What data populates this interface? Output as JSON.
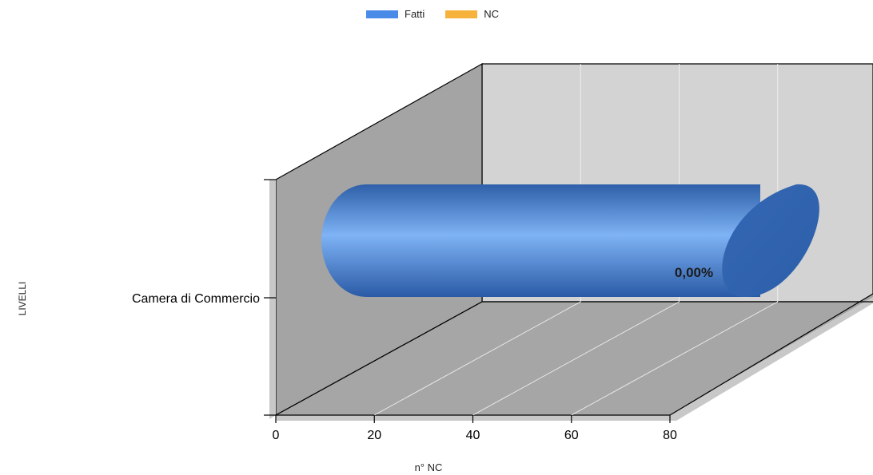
{
  "chart_data": {
    "type": "bar",
    "orientation": "horizontal",
    "style": "3d-cylinder",
    "categories": [
      "Camera di Commercio"
    ],
    "series": [
      {
        "name": "Fatti",
        "values": [
          80
        ],
        "color": "#4a8be8"
      },
      {
        "name": "NC",
        "values": [
          0
        ],
        "color": "#f7b23b"
      }
    ],
    "data_label": "0,00%",
    "xlabel": "n° NC",
    "ylabel": "LIVELLI",
    "xlim": [
      0,
      80
    ],
    "xticks": [
      "0",
      "20",
      "40",
      "60",
      "80"
    ],
    "grid": true,
    "legend_position": "top"
  }
}
